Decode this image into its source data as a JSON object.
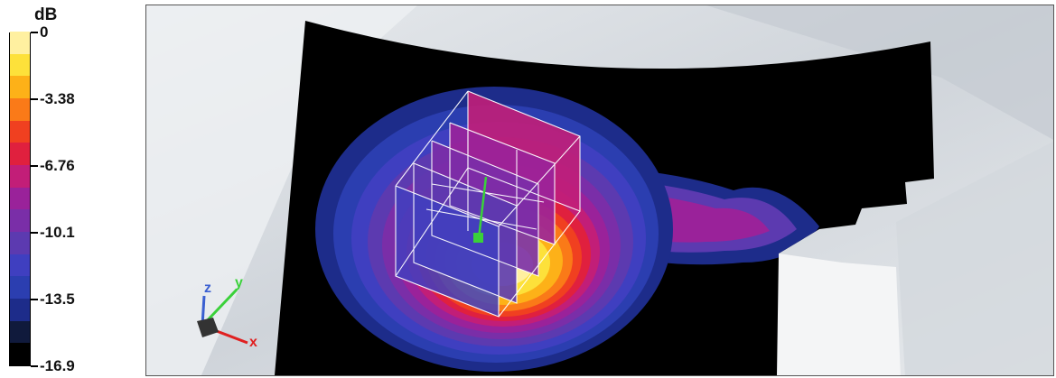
{
  "chart_data": {
    "type": "heatmap",
    "colorbar": {
      "unit": "dB",
      "tick_labels": [
        "0",
        "-3.38",
        "-6.76",
        "-10.1",
        "-13.5",
        "-16.9"
      ],
      "range": [
        -16.9,
        0
      ],
      "levels": 15,
      "colors": [
        "#000000",
        "#101a3c",
        "#1d2c8a",
        "#2b3eb0",
        "#3f3fc0",
        "#5c3ab0",
        "#7a2ea8",
        "#9a229a",
        "#c21e78",
        "#e0203e",
        "#f04020",
        "#fa7a18",
        "#fdb118",
        "#fde13a",
        "#fff0a0"
      ]
    },
    "axes_triad": {
      "x_label": "x",
      "y_label": "y",
      "z_label": "z",
      "x_color": "#e02020",
      "y_color": "#3ad13a",
      "z_color": "#3a5fd1"
    }
  }
}
